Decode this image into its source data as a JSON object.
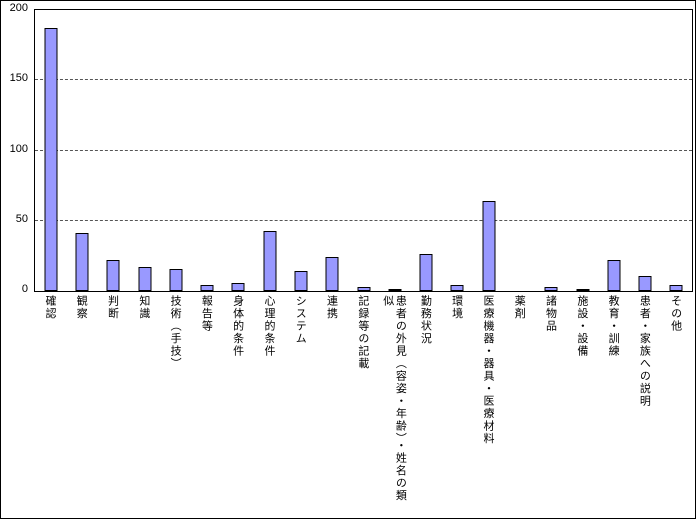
{
  "chart_data": {
    "type": "bar",
    "title": "",
    "xlabel": "",
    "ylabel": "",
    "categories": [
      "確認",
      "観察",
      "判断",
      "知識",
      "技術（手技）",
      "報告等",
      "身体的条件",
      "心理的条件",
      "システム",
      "連携",
      "記録等の記載",
      "患者の外見（容姿・年齢）・姓名の類似",
      "勤務状況",
      "環境",
      "医療機器・器具・医療材料",
      "薬剤",
      "諸物品",
      "施設・設備",
      "教育・訓練",
      "患者・家族への説明",
      "その他"
    ],
    "values": [
      187,
      41,
      22,
      17,
      16,
      4,
      6,
      43,
      14,
      24,
      3,
      1,
      26,
      4,
      64,
      0,
      3,
      1,
      22,
      11,
      4
    ],
    "ylim": [
      0,
      200
    ],
    "yticks": [
      0,
      50,
      100,
      150,
      200
    ],
    "grid": "dashed horizontal lines at 50, 100, 150",
    "legend": "none",
    "colors": {
      "bar_fill": "#9999FF",
      "bar_border": "#000000",
      "gridline": "#555555",
      "plot_background": "#FFFFFF",
      "frame_border": "#000000"
    }
  }
}
